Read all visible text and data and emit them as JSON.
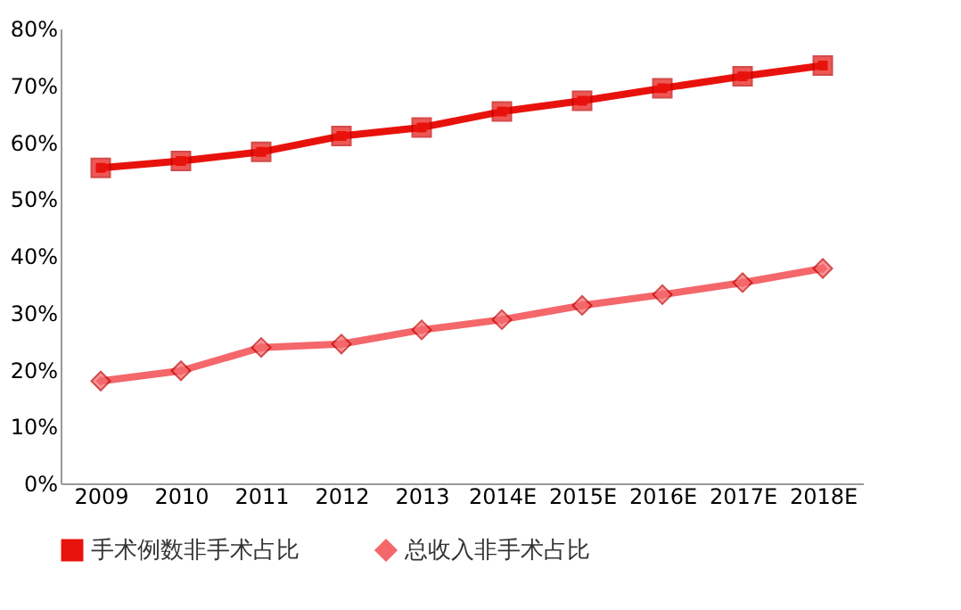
{
  "chart_data": {
    "type": "line",
    "categories": [
      "2009",
      "2010",
      "2011",
      "2012",
      "2013",
      "2014E",
      "2015E",
      "2016E",
      "2017E",
      "2018E"
    ],
    "series": [
      {
        "name": "手术例数非手术占比",
        "color": "#e8120c",
        "marker": "square",
        "values": [
          55.5,
          56.7,
          58.3,
          61.1,
          62.6,
          65.4,
          67.3,
          69.5,
          71.6,
          73.5
        ]
      },
      {
        "name": "总收入非手术占比",
        "color": "#f4676a",
        "marker": "diamond",
        "values": [
          18.0,
          19.8,
          23.9,
          24.5,
          27.0,
          28.8,
          31.3,
          33.2,
          35.3,
          37.8
        ]
      }
    ],
    "ylim": [
      0,
      80
    ],
    "yticks": [
      {
        "value": 0,
        "label": "0%"
      },
      {
        "value": 10,
        "label": "10%"
      },
      {
        "value": 20,
        "label": "20%"
      },
      {
        "value": 30,
        "label": "30%"
      },
      {
        "value": 40,
        "label": "40%"
      },
      {
        "value": 50,
        "label": "50%"
      },
      {
        "value": 60,
        "label": "60%"
      },
      {
        "value": 70,
        "label": "70%"
      },
      {
        "value": 80,
        "label": "80%"
      }
    ],
    "grid": false,
    "legend": "bottom",
    "line_style": "solid"
  }
}
